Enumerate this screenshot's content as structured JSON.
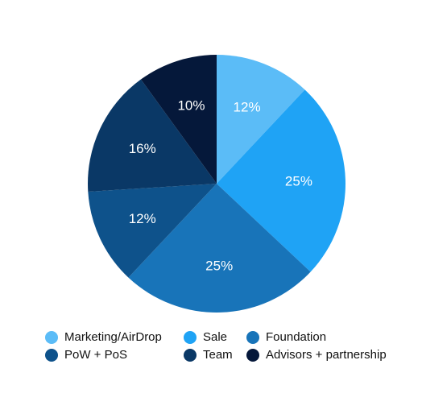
{
  "chart_data": {
    "type": "pie",
    "start_angle_deg": 0,
    "direction": "clockwise",
    "slices": [
      {
        "name": "Marketing/AirDrop",
        "value": 12,
        "label": "12%",
        "color": "#5bbcf7"
      },
      {
        "name": "Sale",
        "value": 25,
        "label": "25%",
        "color": "#1fa3f5"
      },
      {
        "name": "Foundation",
        "value": 25,
        "label": "25%",
        "color": "#1874b9"
      },
      {
        "name": "PoW + PoS",
        "value": 12,
        "label": "12%",
        "color": "#0e528b"
      },
      {
        "name": "Team",
        "value": 16,
        "label": "16%",
        "color": "#0a3866"
      },
      {
        "name": "Advisors + partnership",
        "value": 10,
        "label": "10%",
        "color": "#05183a"
      }
    ],
    "legend": {
      "placement": "bottom",
      "items": [
        {
          "label": "Marketing/AirDrop",
          "color": "#5bbcf7"
        },
        {
          "label": "Sale",
          "color": "#1fa3f5"
        },
        {
          "label": "Foundation",
          "color": "#1874b9"
        },
        {
          "label": "PoW + PoS",
          "color": "#0e528b"
        },
        {
          "label": "Team",
          "color": "#0a3866"
        },
        {
          "label": "Advisors + partnership",
          "color": "#05183a"
        }
      ]
    }
  }
}
